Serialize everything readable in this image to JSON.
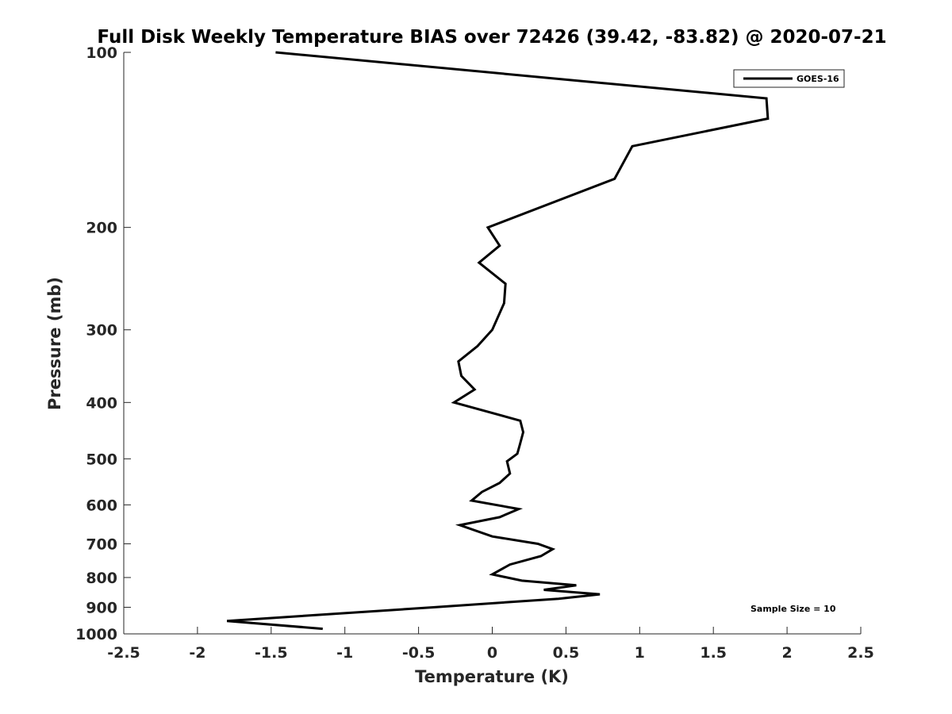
{
  "chart_data": {
    "type": "line",
    "title": "Full Disk Weekly Temperature BIAS over 72426 (39.42, -83.82) @ 2020-07-21",
    "xlabel": "Temperature (K)",
    "ylabel": "Pressure (mb)",
    "xlim": [
      -2.5,
      2.5
    ],
    "ylim": [
      100,
      1000
    ],
    "y_scale": "log",
    "y_reversed": true,
    "x_ticks": [
      "-2.5",
      "-2",
      "-1.5",
      "-1",
      "-0.5",
      "0",
      "0.5",
      "1",
      "1.5",
      "2",
      "2.5"
    ],
    "y_ticks": [
      "100",
      "200",
      "300",
      "400",
      "500",
      "600",
      "700",
      "800",
      "900",
      "1000"
    ],
    "grid": false,
    "legend_position": "top-right",
    "annotation": "Sample Size = 10",
    "series": [
      {
        "name": "GOES-16",
        "color": "#000000",
        "x": [
          -1.47,
          1.86,
          1.87,
          0.95,
          0.83,
          -0.03,
          0.05,
          -0.09,
          0.09,
          0.08,
          0.0,
          -0.1,
          -0.23,
          -0.21,
          -0.12,
          -0.26,
          0.19,
          0.21,
          0.19,
          0.17,
          0.1,
          0.12,
          0.05,
          -0.07,
          -0.14,
          0.18,
          0.05,
          -0.22,
          0.0,
          0.31,
          0.41,
          0.33,
          0.12,
          0.0,
          0.2,
          0.57,
          0.35,
          0.73,
          0.45,
          -0.4,
          -1.8,
          -1.15
        ],
        "y": [
          100,
          120,
          130,
          145,
          165,
          200,
          215,
          230,
          250,
          270,
          300,
          320,
          340,
          360,
          380,
          400,
          430,
          450,
          470,
          490,
          505,
          530,
          550,
          570,
          590,
          610,
          630,
          650,
          680,
          700,
          715,
          735,
          760,
          790,
          810,
          825,
          840,
          855,
          870,
          900,
          950,
          980
        ]
      }
    ]
  }
}
